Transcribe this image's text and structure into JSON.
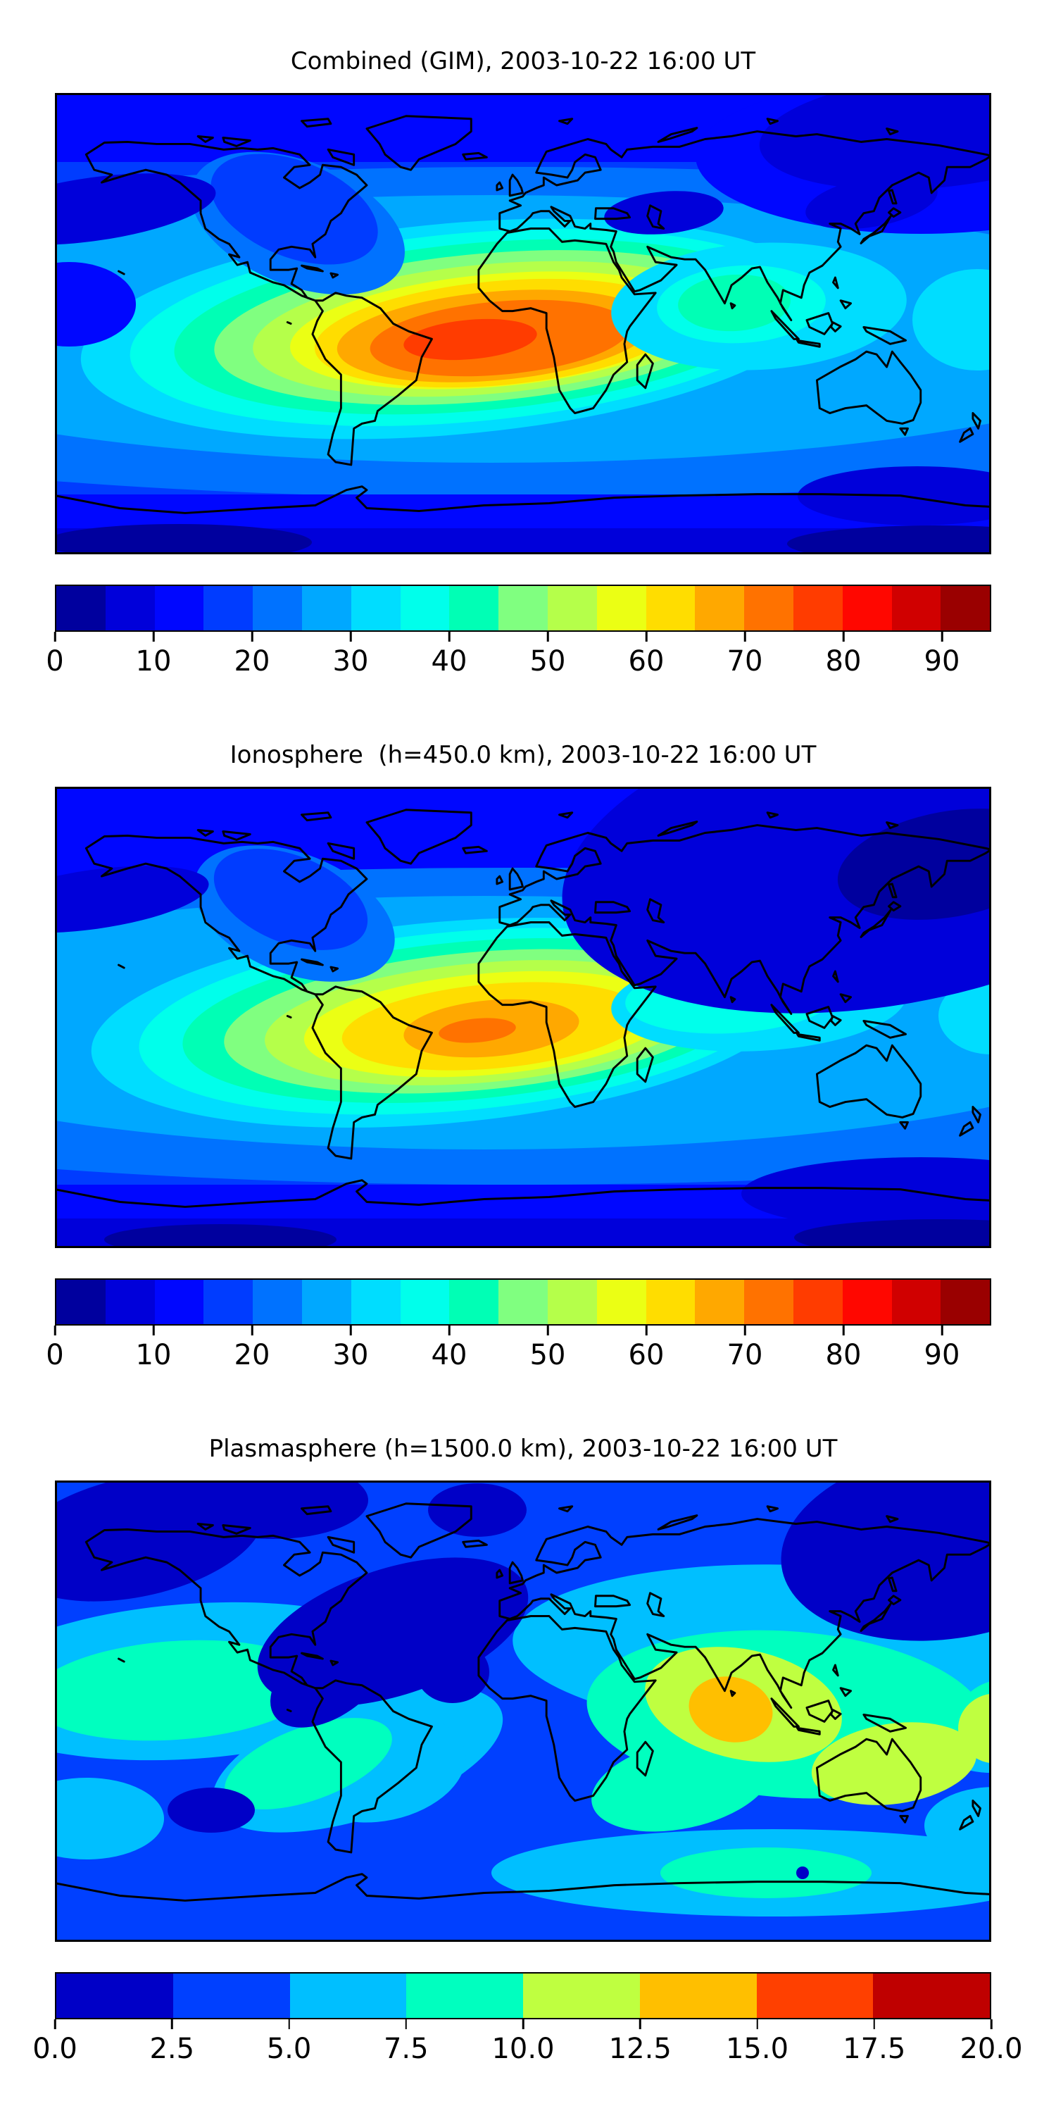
{
  "figure": {
    "background_color": "#ffffff",
    "text_color": "#000000",
    "coastline_color": "#000000",
    "colormap_name": "jet"
  },
  "panels": [
    {
      "id": "combined",
      "title": "Combined (GIM), 2003-10-22 16:00 UT",
      "colorbar": {
        "orientation": "horizontal",
        "range": [
          0,
          95
        ],
        "level_step": 5,
        "segment_colors": [
          "#00009E",
          "#0000DA",
          "#0007FF",
          "#003CFF",
          "#0072FF",
          "#00A8FF",
          "#00DDFF",
          "#00FFEB",
          "#00FFB5",
          "#80FF80",
          "#B5FF4A",
          "#EBFF14",
          "#FFDD00",
          "#FFA800",
          "#FF7200",
          "#FF3C00",
          "#FF0700",
          "#D00000",
          "#9A0000"
        ],
        "ticks": [
          {
            "value": 0,
            "label": "0"
          },
          {
            "value": 10,
            "label": "10"
          },
          {
            "value": 20,
            "label": "20"
          },
          {
            "value": 30,
            "label": "30"
          },
          {
            "value": 40,
            "label": "40"
          },
          {
            "value": 50,
            "label": "50"
          },
          {
            "value": 60,
            "label": "60"
          },
          {
            "value": 70,
            "label": "70"
          },
          {
            "value": 80,
            "label": "80"
          },
          {
            "value": 90,
            "label": "90"
          }
        ]
      }
    },
    {
      "id": "ionosphere",
      "title": "Ionosphere  (h=450.0 km), 2003-10-22 16:00 UT",
      "colorbar": {
        "orientation": "horizontal",
        "range": [
          0,
          95
        ],
        "level_step": 5,
        "segment_colors": [
          "#00009E",
          "#0000DA",
          "#0007FF",
          "#003CFF",
          "#0072FF",
          "#00A8FF",
          "#00DDFF",
          "#00FFEB",
          "#00FFB5",
          "#80FF80",
          "#B5FF4A",
          "#EBFF14",
          "#FFDD00",
          "#FFA800",
          "#FF7200",
          "#FF3C00",
          "#FF0700",
          "#D00000",
          "#9A0000"
        ],
        "ticks": [
          {
            "value": 0,
            "label": "0"
          },
          {
            "value": 10,
            "label": "10"
          },
          {
            "value": 20,
            "label": "20"
          },
          {
            "value": 30,
            "label": "30"
          },
          {
            "value": 40,
            "label": "40"
          },
          {
            "value": 50,
            "label": "50"
          },
          {
            "value": 60,
            "label": "60"
          },
          {
            "value": 70,
            "label": "70"
          },
          {
            "value": 80,
            "label": "80"
          },
          {
            "value": 90,
            "label": "90"
          }
        ]
      }
    },
    {
      "id": "plasmasphere",
      "title": "Plasmasphere (h=1500.0 km), 2003-10-22 16:00 UT",
      "colorbar": {
        "orientation": "horizontal",
        "range": [
          0,
          20
        ],
        "level_step": 2.5,
        "segment_colors": [
          "#0000C7",
          "#0040FF",
          "#00BFFF",
          "#00FFBF",
          "#BFFF40",
          "#FFBF00",
          "#FF4000",
          "#BF0000"
        ],
        "ticks": [
          {
            "value": 0,
            "label": "0.0"
          },
          {
            "value": 2.5,
            "label": "2.5"
          },
          {
            "value": 5,
            "label": "5.0"
          },
          {
            "value": 7.5,
            "label": "7.5"
          },
          {
            "value": 10,
            "label": "10.0"
          },
          {
            "value": 12.5,
            "label": "12.5"
          },
          {
            "value": 15,
            "label": "15.0"
          },
          {
            "value": 17.5,
            "label": "17.5"
          },
          {
            "value": 20,
            "label": "20.0"
          }
        ]
      }
    }
  ],
  "chart_data": [
    {
      "type": "heatmap",
      "subtype": "filled_contour_world_map",
      "title": "Combined (GIM), 2003-10-22 16:00 UT",
      "projection": "equirectangular",
      "lon_range": [
        -180,
        180
      ],
      "lat_range": [
        -90,
        90
      ],
      "colormap": "jet",
      "contour_levels": [
        0,
        5,
        10,
        15,
        20,
        25,
        30,
        35,
        40,
        45,
        50,
        55,
        60,
        65,
        70,
        75,
        80,
        85,
        90,
        95
      ],
      "colorbar_ticks": [
        0,
        10,
        20,
        30,
        40,
        50,
        60,
        70,
        80,
        90
      ],
      "coastlines": true,
      "peak": {
        "approx_value": 80,
        "approx_lon": -35,
        "approx_lat": -8,
        "description": "Equatorial ionization anomaly crest (orange-red band 75-80) stretching from northern South America across the tropical Atlantic to West Africa"
      },
      "secondary_features": [
        "Yellow-green plume extending WNW over Central America and the eastern Pacific (values 45-60)",
        "Cyan/teal secondary enhancement over the Arabian Sea and southern India (35-50)",
        "Values 10-20 at mid latitudes, darkest blues (<10) near both poles and over NE Siberia"
      ]
    },
    {
      "type": "heatmap",
      "subtype": "filled_contour_world_map",
      "title": "Ionosphere  (h=450.0 km), 2003-10-22 16:00 UT",
      "projection": "equirectangular",
      "lon_range": [
        -180,
        180
      ],
      "lat_range": [
        -90,
        90
      ],
      "colormap": "jet",
      "contour_levels": [
        0,
        5,
        10,
        15,
        20,
        25,
        30,
        35,
        40,
        45,
        50,
        55,
        60,
        65,
        70,
        75,
        80,
        85,
        90,
        95
      ],
      "colorbar_ticks": [
        0,
        10,
        20,
        30,
        40,
        50,
        60,
        70,
        80,
        90
      ],
      "coastlines": true,
      "peak": {
        "approx_value": 73,
        "approx_lon": -40,
        "approx_lat": -6,
        "description": "Single orange core (70-75) over northeastern Brazil; yellow band (55-65) spans South America and western Africa"
      },
      "secondary_features": [
        "Large dark-blue depletion (<10) covering northern and eastern Asia and the NW Pacific",
        "Cyan tongue over southern India / Indian Ocean (30-40)",
        "Dark navy band (<5) along the Antarctic edge"
      ]
    },
    {
      "type": "heatmap",
      "subtype": "filled_contour_world_map",
      "title": "Plasmasphere (h=1500.0 km), 2003-10-22 16:00 UT",
      "projection": "equirectangular",
      "lon_range": [
        -180,
        180
      ],
      "lat_range": [
        -90,
        90
      ],
      "colormap": "jet",
      "contour_levels": [
        0,
        2.5,
        5,
        7.5,
        10,
        12.5,
        15,
        17.5,
        20
      ],
      "colorbar_ticks": [
        0,
        2.5,
        5,
        7.5,
        10,
        12.5,
        15,
        17.5,
        20
      ],
      "coastlines": true,
      "peak": {
        "approx_value": 14,
        "approx_lon": 48,
        "approx_lat": 5,
        "description": "Orange-gold maximum (12.5-15) over the Horn of Africa / Arabian Sea inside a yellow-green region (10-12.5)"
      },
      "secondary_features": [
        "Yellow-green patch (10-12.5) over Indonesia / SE Asia and at the eastern map edge",
        "Spring-green bands (7.5-10) over the tropical east Pacific and Afro-Asian longitudes",
        "Cyan (5-7.5) mid-latitude bands in both hemispheres; base level 2.5-5",
        "Dark navy minima (<2.5) over NE North America / W Atlantic, the Canadian Arctic, NE Siberia, a small S Pacific oval and a spot near 15S in the Atlantic"
      ]
    }
  ]
}
